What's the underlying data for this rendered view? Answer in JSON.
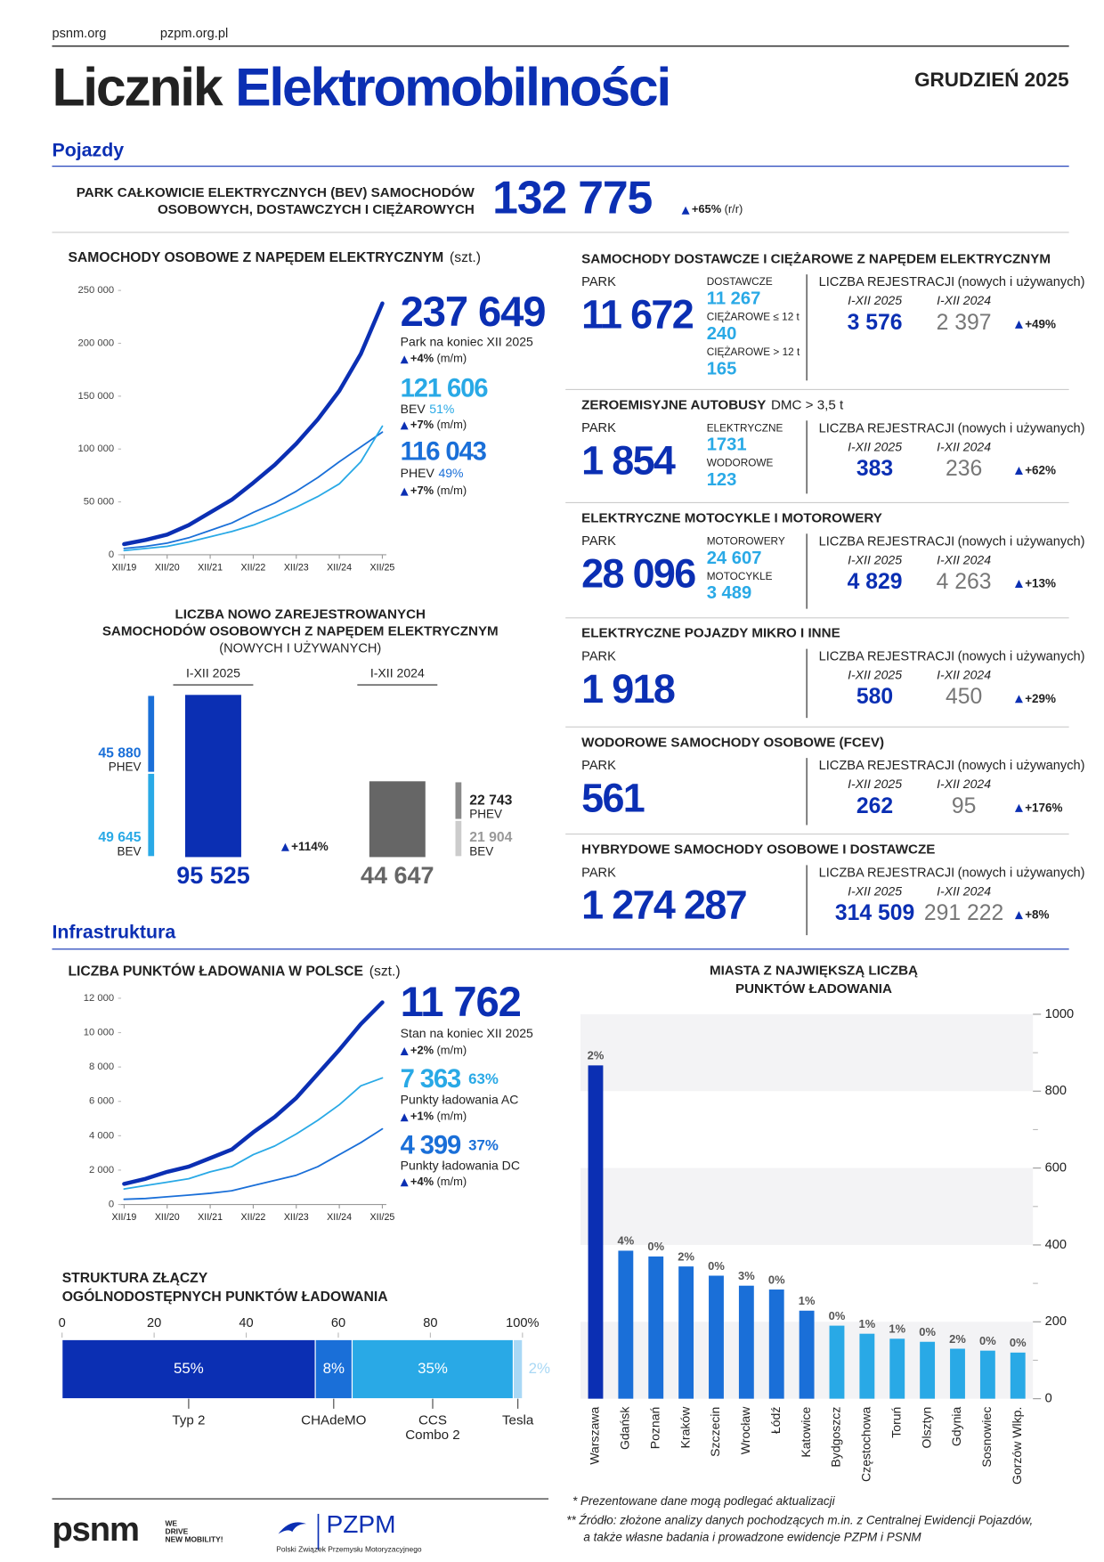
{
  "header": {
    "links": [
      "psnm.org",
      "pzpm.org.pl"
    ],
    "title_dark": "Licznik",
    "title_blue": "Elektromobilności",
    "date": "GRUDZIEŃ 2025"
  },
  "sections": [
    "Pojazdy",
    "Infrastruktura"
  ],
  "bev_fleet": {
    "label_lines": [
      "PARK CAŁKOWICIE ELEKTRYCZNYCH (BEV) SAMOCHODÓW",
      "OSOBOWYCH, DOSTAWCZYCH I CIĘŻAROWYCH"
    ],
    "value": "132 775",
    "change": "+65%",
    "period": "(r/r)"
  },
  "chart_data": [
    {
      "type": "line",
      "title": "SAMOCHODY OSOBOWE Z NAPĘDEM ELEKTRYCZNYM",
      "unit": "(szt.)",
      "categories": [
        "XII/19",
        null,
        "XII/20",
        null,
        "XII/21",
        null,
        "XII/22",
        null,
        "XII/23",
        null,
        "XII/24",
        null,
        "XII/25"
      ],
      "ylim": [
        0,
        250000
      ],
      "yticks": [
        0,
        {
          "value": 50000,
          "label": "50 000"
        },
        {
          "value": 100000,
          "label": "100 000"
        },
        {
          "value": 150000,
          "label": "150 000"
        },
        {
          "value": 200000,
          "label": "200 000"
        },
        {
          "value": 250000,
          "label": "250 000"
        }
      ],
      "series": [
        {
          "color": "#0b2fb3",
          "values": [
            10000,
            14000,
            19000,
            28000,
            40000,
            52000,
            68000,
            85000,
            105000,
            128000,
            155000,
            190000,
            237649
          ]
        },
        {
          "name": "BEV",
          "color": "#29a9e6",
          "values": [
            4000,
            6000,
            8000,
            12000,
            17000,
            22000,
            28000,
            36000,
            45000,
            55000,
            67000,
            88000,
            121606
          ]
        },
        {
          "name": "PHEV",
          "color": "#1a6fd8",
          "values": [
            6000,
            8000,
            11000,
            16000,
            23000,
            30000,
            40000,
            49000,
            60000,
            73000,
            88000,
            102000,
            116043
          ]
        }
      ],
      "callouts": [
        {
          "value_label": "237 649",
          "caption": "Park na koniec XII 2025",
          "change": "+4%",
          "period": "(m/m)"
        },
        {
          "value_label": "121 606",
          "share": "51%",
          "change": "+7%",
          "period": "(m/m)"
        },
        {
          "value_label": "116 043",
          "share": "49%",
          "change": "+7%",
          "period": "(m/m)"
        }
      ]
    },
    {
      "type": "column",
      "title_lines": [
        "LICZBA NOWO ZAREJESTROWANYCH",
        "SAMOCHODÓW OSOBOWYCH Z NAPĘDEM ELEKTRYCZNYM"
      ],
      "subtitle": "(NOWYCH I UŻYWANYCH)",
      "categories": [
        "I-XII 2025",
        "I-XII 2024"
      ],
      "values": [
        95525,
        44647
      ],
      "value_labels": [
        "95 525",
        "44 647"
      ],
      "colors": [
        "#0b2fb3",
        "#666666"
      ],
      "series": [
        {
          "name": "PHEV",
          "values": [
            45880,
            22743
          ],
          "value_labels": [
            "45 880",
            "22 743"
          ],
          "colors": [
            "#1a6fd8",
            "#8a8a8a"
          ]
        },
        {
          "name": "BEV",
          "values": [
            49645,
            21904
          ],
          "value_labels": [
            "49 645",
            "21 904"
          ],
          "colors": [
            "#29a9e6",
            "#cccccc"
          ]
        }
      ],
      "change": "+114%"
    },
    {
      "type": "line",
      "title": "LICZBA PUNKTÓW ŁADOWANIA W POLSCE",
      "unit": "(szt.)",
      "categories": [
        "XII/19",
        null,
        "XII/20",
        null,
        "XII/21",
        null,
        "XII/22",
        null,
        "XII/23",
        null,
        "XII/24",
        null,
        "XII/25"
      ],
      "ylim": [
        0,
        12000
      ],
      "yticks": [
        0,
        {
          "value": 2000,
          "label": "2 000"
        },
        {
          "value": 4000,
          "label": "4 000"
        },
        {
          "value": 6000,
          "label": "6 000"
        },
        {
          "value": 8000,
          "label": "8 000"
        },
        {
          "value": 10000,
          "label": "10 000"
        },
        {
          "value": 12000,
          "label": "12 000"
        }
      ],
      "series": [
        {
          "color": "#0b2fb3",
          "values": [
            1200,
            1500,
            1900,
            2200,
            2700,
            3200,
            4200,
            5100,
            6200,
            7600,
            9000,
            10500,
            11762
          ]
        },
        {
          "name": "Punkty ładowania AC",
          "color": "#29a9e6",
          "values": [
            900,
            1100,
            1300,
            1500,
            1900,
            2200,
            2900,
            3400,
            4100,
            4900,
            5800,
            6900,
            7363
          ]
        },
        {
          "name": "Punkty ładowania DC",
          "color": "#1a6fd8",
          "values": [
            300,
            350,
            450,
            550,
            650,
            800,
            1100,
            1400,
            1700,
            2200,
            2900,
            3600,
            4399
          ]
        }
      ],
      "callouts": [
        {
          "value_label": "11 762",
          "caption": "Stan na koniec XII 2025",
          "change": "+2%",
          "period": "(m/m)"
        },
        {
          "value_label": "7 363",
          "share": "63%",
          "change": "+1%",
          "period": "(m/m)"
        },
        {
          "value_label": "4 399",
          "share": "37%",
          "change": "+4%",
          "period": "(m/m)"
        }
      ]
    },
    {
      "type": "stack",
      "title_lines": [
        "STRUKTURA ZŁĄCZY",
        "OGÓLNODOSTĘPNYCH PUNKTÓW ŁADOWANIA"
      ],
      "xlim": [
        0,
        100
      ],
      "xticks": [
        0,
        20,
        40,
        60,
        80,
        {
          "value": 100,
          "label": "100%"
        }
      ],
      "categories": [
        [
          "Typ 2"
        ],
        [
          "CHAdeMO"
        ],
        [
          "CCS",
          "Combo 2"
        ],
        [
          "Tesla"
        ]
      ],
      "values": [
        55,
        8,
        35,
        2
      ],
      "value_labels": [
        "55%",
        "8%",
        "35%",
        "2%"
      ],
      "colors": [
        "#0b2fb3",
        "#1a6fd8",
        "#29a9e6",
        "#a9d8f5"
      ]
    },
    {
      "type": "bar",
      "title_lines": [
        "MIASTA Z NAJWIĘKSZĄ LICZBĄ",
        "PUNKTÓW ŁADOWANIA"
      ],
      "categories": [
        "Warszawa",
        "Gdańsk",
        "Poznań",
        "Kraków",
        "Szczecin",
        "Wrocław",
        "Łódź",
        "Katowice",
        "Bydgoszcz",
        "Częstochowa",
        "Toruń",
        "Olsztyn",
        "Gdynia",
        "Sosnowiec",
        "Gorzów Wlkp."
      ],
      "values": [
        867,
        385,
        370,
        344,
        320,
        294,
        284,
        229,
        190,
        169,
        156,
        148,
        130,
        125,
        120
      ],
      "changes": [
        "2%",
        "4%",
        "0%",
        "2%",
        "0%",
        "3%",
        "0%",
        "1%",
        "0%",
        "1%",
        "1%",
        "0%",
        "2%",
        "0%",
        "0%"
      ],
      "colors": [
        "#0b2fb3",
        "#1a6fd8",
        "#1a6fd8",
        "#1a6fd8",
        "#1a6fd8",
        "#1a6fd8",
        "#1a6fd8",
        "#1a6fd8",
        "#29a9e6",
        "#29a9e6",
        "#29a9e6",
        "#29a9e6",
        "#29a9e6",
        "#29a9e6",
        "#29a9e6"
      ],
      "ylim": [
        0,
        1000
      ],
      "yticks": [
        0,
        200,
        400,
        600,
        800,
        1000
      ]
    }
  ],
  "panel_labels": {
    "park": "PARK",
    "reg": "LICZBA REJESTRACJI",
    "reg_note": "(nowych i używanych)",
    "periods": [
      "I-XII 2025",
      "I-XII 2024"
    ]
  },
  "panels": [
    {
      "title": "SAMOCHODY DOSTAWCZE I CIĘŻAROWE Z NAPĘDEM ELEKTRYCZNYM",
      "park": "11 672",
      "breakdown": [
        {
          "label": "DOSTAWCZE",
          "value": "11 267"
        },
        {
          "label": "CIĘŻAROWE ≤ 12 t",
          "value": "240"
        },
        {
          "label": "CIĘŻAROWE > 12 t",
          "value": "165"
        }
      ],
      "reg": [
        "3 576",
        "2 397"
      ],
      "change": "+49%"
    },
    {
      "title": "ZEROEMISYJNE AUTOBUSY",
      "title_note": "DMC > 3,5 t",
      "park": "1 854",
      "breakdown": [
        {
          "label": "ELEKTRYCZNE",
          "value": "1731"
        },
        {
          "label": "WODOROWE",
          "value": "123"
        }
      ],
      "reg": [
        "383",
        "236"
      ],
      "change": "+62%"
    },
    {
      "title": "ELEKTRYCZNE MOTOCYKLE I MOTOROWERY",
      "park": "28 096",
      "breakdown": [
        {
          "label": "MOTOROWERY",
          "value": "24 607"
        },
        {
          "label": "MOTOCYKLE",
          "value": "3 489"
        }
      ],
      "reg": [
        "4 829",
        "4 263"
      ],
      "change": "+13%"
    },
    {
      "title": "ELEKTRYCZNE POJAZDY MIKRO I INNE",
      "park": "1 918",
      "reg": [
        "580",
        "450"
      ],
      "change": "+29%"
    },
    {
      "title": "WODOROWE SAMOCHODY OSOBOWE (FCEV)",
      "park": "561",
      "reg": [
        "262",
        "95"
      ],
      "change": "+176%"
    },
    {
      "title": "HYBRYDOWE SAMOCHODY OSOBOWE I DOSTAWCZE",
      "park": "1 274 287",
      "reg": [
        "314 509",
        "291 222"
      ],
      "change": "+8%"
    }
  ],
  "footer": {
    "logo": "psnm",
    "tagline": [
      "WE",
      "DRIVE",
      "NEW MOBILITY!"
    ],
    "pzpm": "PZPM",
    "pzpm_name": "Polski Związek Przemysłu Motoryzacyjnego"
  },
  "notes": [
    "* Prezentowane dane mogą podlegać aktualizacji",
    "** Źródło: złożone analizy danych pochodzących m.in. z Centralnej Ewidencji Pojazdów,",
    "a także własne badania i prowadzone ewidencje PZPM i PSNM"
  ]
}
